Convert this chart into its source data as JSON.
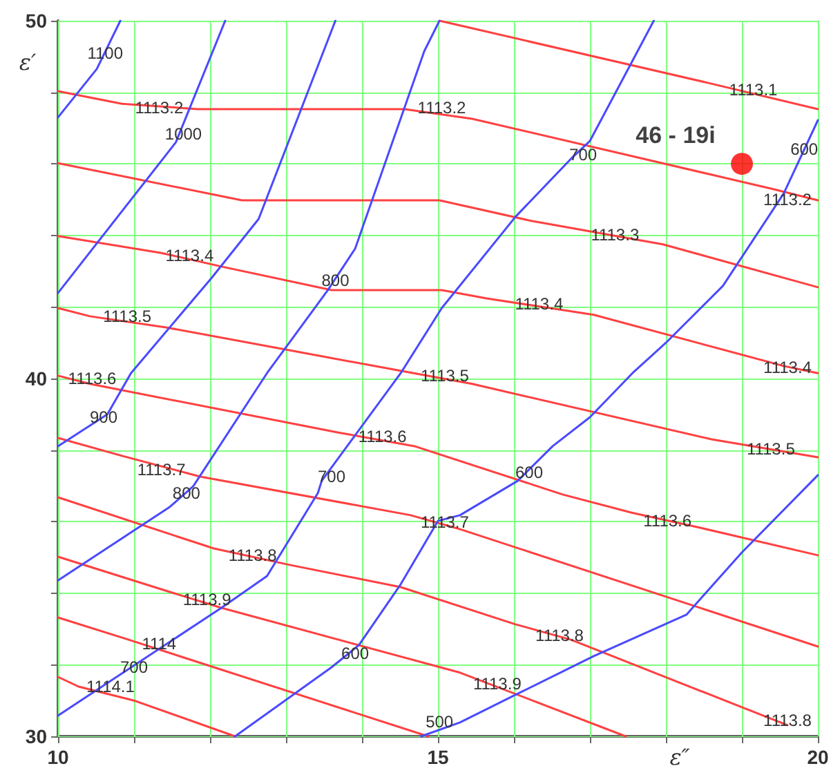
{
  "chart_data": {
    "type": "line",
    "xlabel": "ε″",
    "ylabel": "ε′",
    "xlim": [
      10,
      20
    ],
    "ylim": [
      30,
      50
    ],
    "xticks": [
      10,
      {
        "value": 11,
        "label": null
      },
      {
        "value": 12,
        "label": null
      },
      {
        "value": 13,
        "label": null
      },
      {
        "value": 14,
        "label": null
      },
      15,
      {
        "value": 16,
        "label": null
      },
      {
        "value": 17,
        "label": null
      },
      {
        "value": 18,
        "label": null
      },
      {
        "value": 19,
        "label": null
      },
      20
    ],
    "yticks": [
      30,
      {
        "value": 32,
        "label": null
      },
      {
        "value": 34,
        "label": null
      },
      {
        "value": 36,
        "label": null
      },
      {
        "value": 38,
        "label": null
      },
      40,
      {
        "value": 42,
        "label": null
      },
      {
        "value": 44,
        "label": null
      },
      {
        "value": 46,
        "label": null
      },
      {
        "value": 48,
        "label": null
      },
      50
    ],
    "grid": true,
    "legend": false,
    "marker": "none",
    "line_style": "solid",
    "series": [
      {
        "color": "#ff4040",
        "x": [
          15.02,
          18.56,
          20
        ],
        "values": [
          50,
          48.26,
          47.53
        ]
      },
      {
        "color": "#ff4040",
        "x": [
          10,
          10.84,
          11.84,
          14.56,
          15.45,
          19.42,
          20
        ],
        "values": [
          48.03,
          47.68,
          47.53,
          47.53,
          47.26,
          45.29,
          44.98
        ]
      },
      {
        "color": "#ff4040",
        "x": [
          10,
          12.42,
          15.02,
          16.24,
          17.96,
          20
        ],
        "values": [
          46.02,
          44.98,
          44.98,
          44.4,
          43.75,
          42.55
        ]
      },
      {
        "color": "#ff4040",
        "x": [
          10,
          11.36,
          12.15,
          13.6,
          15.05,
          15.64,
          17.05,
          19.55,
          20
        ],
        "values": [
          43.98,
          43.51,
          43.13,
          42.47,
          42.47,
          42.24,
          41.78,
          40.35,
          40.15
        ]
      },
      {
        "color": "#ff4040",
        "x": [
          10,
          10.42,
          11.42,
          14.47,
          15.45,
          18.6,
          20
        ],
        "values": [
          41.97,
          41.74,
          41.43,
          40.23,
          39.85,
          38.3,
          37.8
        ]
      },
      {
        "color": "#ff4040",
        "x": [
          10,
          10.42,
          13.69,
          14.69,
          16.64,
          17.55,
          18.45,
          20
        ],
        "values": [
          40.08,
          39.85,
          38.49,
          38.11,
          36.76,
          36.25,
          35.83,
          35.06
        ]
      },
      {
        "color": "#ff4040",
        "x": [
          10,
          10.84,
          11.87,
          14.64,
          15.29,
          20
        ],
        "values": [
          38.34,
          37.84,
          37.26,
          36.18,
          35.79,
          32.51
        ]
      },
      {
        "color": "#ff4040",
        "x": [
          10,
          12.05,
          13.05,
          14.51,
          16.02,
          16.75,
          19.6
        ],
        "values": [
          36.68,
          35.25,
          34.79,
          34.17,
          33.13,
          32.7,
          30.31
        ]
      },
      {
        "color": "#ff4040",
        "x": [
          10,
          11.45,
          12.15,
          15.29,
          17.47
        ],
        "values": [
          35.02,
          34.05,
          33.59,
          31.78,
          30
        ]
      },
      {
        "color": "#ff4040",
        "x": [
          10,
          10.93,
          11.6,
          14.87
        ],
        "values": [
          33.32,
          32.7,
          32.24,
          30
        ]
      },
      {
        "color": "#ff4040",
        "x": [
          10,
          10.27,
          11.0,
          12.33
        ],
        "values": [
          31.66,
          31.39,
          31.0,
          30
        ]
      },
      {
        "color": "#4a4aff",
        "x": [
          10,
          10.51,
          10.82
        ],
        "values": [
          47.3,
          48.65,
          50
        ]
      },
      {
        "color": "#4a4aff",
        "x": [
          10,
          11.55,
          12.2
        ],
        "values": [
          42.39,
          46.6,
          50
        ]
      },
      {
        "color": "#4a4aff",
        "x": [
          10,
          10.65,
          10.96,
          12.02,
          12.64,
          13.65
        ],
        "values": [
          38.11,
          39.0,
          40.15,
          42.81,
          44.46,
          50
        ]
      },
      {
        "color": "#4a4aff",
        "x": [
          10,
          11.47,
          11.78,
          12.75,
          13.55,
          13.91,
          14.82,
          15.02
        ],
        "values": [
          34.36,
          36.41,
          36.99,
          40.15,
          42.47,
          43.63,
          49.15,
          50
        ]
      },
      {
        "color": "#4a4aff",
        "x": [
          10,
          12.15,
          12.75,
          13.42,
          13.47,
          14.51,
          15.05,
          16.02,
          16.75,
          17.0,
          17.84
        ],
        "values": [
          30.58,
          33.59,
          34.48,
          36.8,
          37.14,
          40.15,
          41.97,
          44.52,
          46.14,
          46.64,
          50
        ]
      },
      {
        "color": "#4a4aff",
        "x": [
          12.33,
          13.6,
          13.96,
          14.51,
          15.0,
          15.29,
          16.05,
          16.51,
          17.0,
          17.56,
          18.0,
          18.75,
          19.55,
          20
        ],
        "values": [
          30,
          31.93,
          32.55,
          34.25,
          36.02,
          36.18,
          37.14,
          38.11,
          38.92,
          40.15,
          41.0,
          42.59,
          45.17,
          47.22
        ]
      },
      {
        "color": "#4a4aff",
        "x": [
          14.78,
          15.29,
          16.02,
          17.05,
          18.27,
          19.0,
          20
        ],
        "values": [
          30,
          30.39,
          31.16,
          32.24,
          33.4,
          35.14,
          37.3
        ]
      },
      {
        "type": "scatter",
        "marker": "circle",
        "name": "46 - 19i",
        "color": "#ff0000",
        "x": [
          19
        ],
        "values": [
          46
        ]
      }
    ],
    "annotations": [
      {
        "text": "1113.1",
        "x": 19.15,
        "y": 48.07
      },
      {
        "text": "1113.2",
        "x": 11.33,
        "y": 47.57
      },
      {
        "text": "1113.2",
        "x": 15.05,
        "y": 47.57
      },
      {
        "text": "1113.2",
        "x": 19.6,
        "y": 45.0
      },
      {
        "text": "1113.3",
        "x": 17.33,
        "y": 44.02
      },
      {
        "text": "1113.4",
        "x": 11.73,
        "y": 43.44
      },
      {
        "text": "1113.4",
        "x": 16.33,
        "y": 42.08
      },
      {
        "text": "1113.4",
        "x": 19.6,
        "y": 40.3
      },
      {
        "text": "1113.5",
        "x": 10.91,
        "y": 41.74
      },
      {
        "text": "1113.5",
        "x": 15.09,
        "y": 40.08
      },
      {
        "text": "1113.5",
        "x": 19.38,
        "y": 38.03
      },
      {
        "text": "1113.6",
        "x": 10.45,
        "y": 40.0
      },
      {
        "text": "1113.6",
        "x": 14.27,
        "y": 38.38
      },
      {
        "text": "1113.6",
        "x": 18.02,
        "y": 36.02
      },
      {
        "text": "1113.7",
        "x": 11.36,
        "y": 37.45
      },
      {
        "text": "1113.7",
        "x": 15.09,
        "y": 35.98
      },
      {
        "text": "1113.8",
        "x": 12.56,
        "y": 35.06
      },
      {
        "text": "1113.8",
        "x": 16.6,
        "y": 32.82
      },
      {
        "text": "1113.8",
        "x": 19.6,
        "y": 30.45
      },
      {
        "text": "1113.9",
        "x": 11.96,
        "y": 33.82
      },
      {
        "text": "1113.9",
        "x": 15.78,
        "y": 31.47
      },
      {
        "text": "1114",
        "x": 11.33,
        "y": 32.59
      },
      {
        "text": "1114.1",
        "x": 10.69,
        "y": 31.39
      },
      {
        "text": "1100",
        "x": 10.62,
        "y": 49.1
      },
      {
        "text": "1000",
        "x": 11.65,
        "y": 46.83
      },
      {
        "text": "900",
        "x": 10.6,
        "y": 38.92
      },
      {
        "text": "800",
        "x": 11.69,
        "y": 36.8
      },
      {
        "text": "800",
        "x": 13.65,
        "y": 42.74
      },
      {
        "text": "700",
        "x": 16.91,
        "y": 46.25
      },
      {
        "text": "700",
        "x": 13.6,
        "y": 37.26
      },
      {
        "text": "700",
        "x": 11.0,
        "y": 31.93
      },
      {
        "text": "600",
        "x": 19.82,
        "y": 46.4
      },
      {
        "text": "600",
        "x": 16.2,
        "y": 37.37
      },
      {
        "text": "600",
        "x": 13.91,
        "y": 32.32
      },
      {
        "text": "500",
        "x": 15.02,
        "y": 30.4
      }
    ]
  }
}
